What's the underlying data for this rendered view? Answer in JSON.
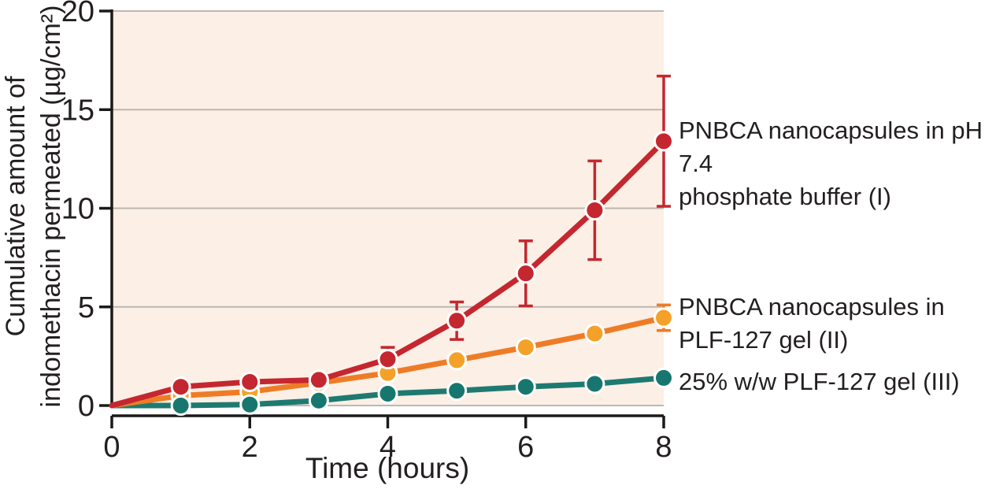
{
  "figure": {
    "background": "#ffffff",
    "plot_bg": "#fcefe5",
    "grid_color": "#bdb7b2",
    "axis_color": "#1c1a19",
    "text_color": "#231f20"
  },
  "chart_data": {
    "type": "line",
    "title": "",
    "xlabel": "Time (hours)",
    "ylabel": "Cumulative amount of\nindomethacin permeated (µg/cm²)",
    "xlim": [
      0,
      8
    ],
    "ylim": [
      0,
      20
    ],
    "xticks": [
      0,
      2,
      4,
      6,
      8
    ],
    "yticks": [
      0,
      5,
      10,
      15,
      20
    ],
    "grid": true,
    "legend_position": "right-of-plot",
    "x": [
      0,
      1,
      2,
      3,
      4,
      5,
      6,
      7,
      8
    ],
    "series": [
      {
        "name": "PNBCA nanocapsules in pH 7.4 phosphate buffer (I)",
        "label_lines": "PNBCA nanocapsules in pH 7.4\nphosphate buffer (I)",
        "color": "#c4272f",
        "marker_color": "#c4272f",
        "values": [
          0,
          0.95,
          1.2,
          1.3,
          2.35,
          4.3,
          6.7,
          9.9,
          13.4
        ],
        "error": [
          null,
          null,
          null,
          null,
          0.6,
          0.95,
          1.65,
          2.5,
          3.3
        ]
      },
      {
        "name": "PNBCA nanocapsules in PLF-127 gel (II)",
        "label_lines": "PNBCA nanocapsules in\nPLF-127 gel (II)",
        "color": "#ee7c26",
        "marker_color": "#f4a129",
        "values": [
          0,
          0.5,
          0.7,
          1.15,
          1.65,
          2.3,
          2.95,
          3.65,
          4.45
        ],
        "error": [
          null,
          null,
          null,
          null,
          null,
          null,
          null,
          null,
          0.65
        ]
      },
      {
        "name": "25% w/w PLF-127 gel (III)",
        "label_lines": "25% w/w PLF-127 gel (III)",
        "color": "#1e7a71",
        "marker_color": "#17776e",
        "values": [
          0,
          0,
          0.05,
          0.25,
          0.6,
          0.75,
          0.95,
          1.1,
          1.4
        ],
        "error": [
          null,
          null,
          null,
          null,
          null,
          null,
          null,
          null,
          null
        ]
      }
    ]
  }
}
